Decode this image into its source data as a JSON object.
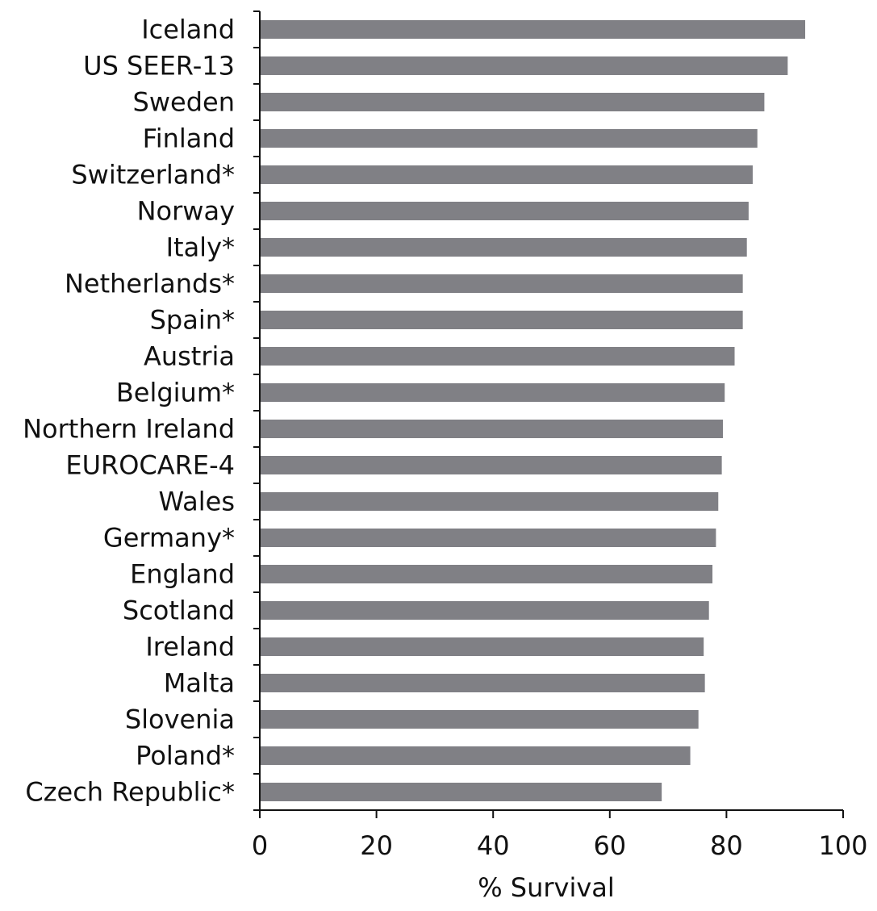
{
  "chart_data": {
    "type": "bar",
    "orientation": "horizontal",
    "title": "",
    "xlabel": "% Survival",
    "ylabel": "",
    "xlim": [
      0,
      100
    ],
    "x_ticks": [
      "0",
      "20",
      "40",
      "60",
      "80",
      "100"
    ],
    "grid": false,
    "bar_color": "#808085",
    "categories": [
      "Iceland",
      "US SEER-13",
      "Sweden",
      "Finland",
      "Switzerland*",
      "Norway",
      "Italy*",
      "Netherlands*",
      "Spain*",
      "Austria",
      "Belgium*",
      "Northern Ireland",
      "EUROCARE-4",
      "Wales",
      "Germany*",
      "England",
      "Scotland",
      "Ireland",
      "Malta",
      "Slovenia",
      "Poland*",
      "Czech Republic*"
    ],
    "values": [
      93.5,
      90.5,
      86.5,
      85.3,
      84.5,
      83.8,
      83.5,
      82.8,
      82.8,
      81.4,
      79.7,
      79.4,
      79.2,
      78.6,
      78.2,
      77.6,
      77.0,
      76.1,
      76.3,
      75.2,
      73.8,
      68.9
    ]
  }
}
